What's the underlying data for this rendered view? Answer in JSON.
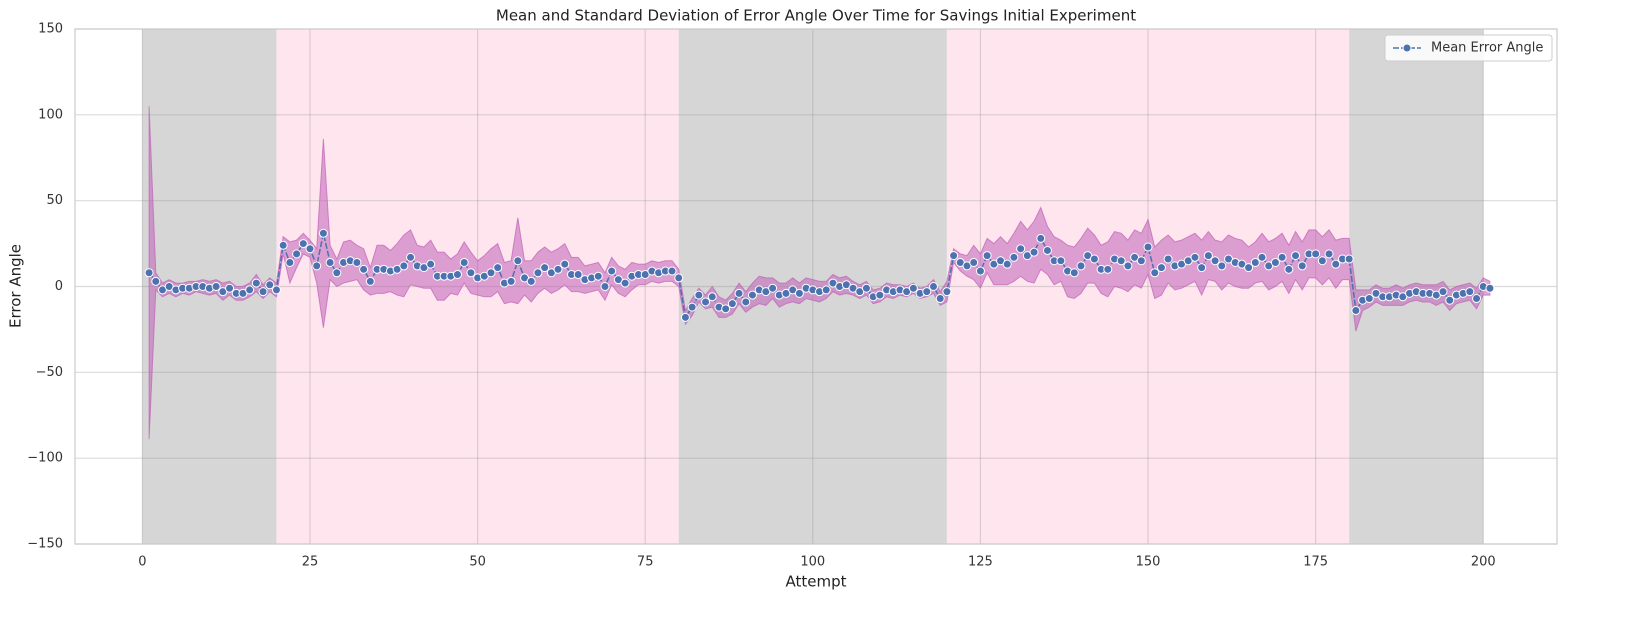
{
  "chart_data": {
    "type": "line",
    "title": "Mean and Standard Deviation of Error Angle Over Time for Savings Initial Experiment",
    "x_label": "Attempt",
    "y_label": "Error Angle",
    "xlim": [
      -10.05,
      211
    ],
    "ylim": [
      -150,
      150
    ],
    "xticks": [
      0,
      25,
      50,
      75,
      100,
      125,
      150,
      175,
      200
    ],
    "yticks": [
      {
        "value": -150,
        "label": "−150"
      },
      {
        "value": -100,
        "label": "−100"
      },
      {
        "value": -50,
        "label": "−50"
      },
      0,
      50,
      100,
      150
    ],
    "grid": true,
    "legend": "upper right",
    "spans": [
      {
        "start": 0,
        "end": 20,
        "color": "#d6d6d6"
      },
      {
        "start": 20,
        "end": 80,
        "color": "#ffe6ee"
      },
      {
        "start": 80,
        "end": 120,
        "color": "#d6d6d6"
      },
      {
        "start": 120,
        "end": 180,
        "color": "#ffe6ee"
      },
      {
        "start": 180,
        "end": 200,
        "color": "#d6d6d6"
      }
    ],
    "x": [
      1,
      2,
      3,
      4,
      5,
      6,
      7,
      8,
      9,
      10,
      11,
      12,
      13,
      14,
      15,
      16,
      17,
      18,
      19,
      20,
      21,
      22,
      23,
      24,
      25,
      26,
      27,
      28,
      29,
      30,
      31,
      32,
      33,
      34,
      35,
      36,
      37,
      38,
      39,
      40,
      41,
      42,
      43,
      44,
      45,
      46,
      47,
      48,
      49,
      50,
      51,
      52,
      53,
      54,
      55,
      56,
      57,
      58,
      59,
      60,
      61,
      62,
      63,
      64,
      65,
      66,
      67,
      68,
      69,
      70,
      71,
      72,
      73,
      74,
      75,
      76,
      77,
      78,
      79,
      80,
      81,
      82,
      83,
      84,
      85,
      86,
      87,
      88,
      89,
      90,
      91,
      92,
      93,
      94,
      95,
      96,
      97,
      98,
      99,
      100,
      101,
      102,
      103,
      104,
      105,
      106,
      107,
      108,
      109,
      110,
      111,
      112,
      113,
      114,
      115,
      116,
      117,
      118,
      119,
      120,
      121,
      122,
      123,
      124,
      125,
      126,
      127,
      128,
      129,
      130,
      131,
      132,
      133,
      134,
      135,
      136,
      137,
      138,
      139,
      140,
      141,
      142,
      143,
      144,
      145,
      146,
      147,
      148,
      149,
      150,
      151,
      152,
      153,
      154,
      155,
      156,
      157,
      158,
      159,
      160,
      161,
      162,
      163,
      164,
      165,
      166,
      167,
      168,
      169,
      170,
      171,
      172,
      173,
      174,
      175,
      176,
      177,
      178,
      179,
      180,
      181,
      182,
      183,
      184,
      185,
      186,
      187,
      188,
      189,
      190,
      191,
      192,
      193,
      194,
      195,
      196,
      197,
      198,
      199,
      200,
      201
    ],
    "series": [
      {
        "name": "Mean Error Angle",
        "color": "#4c72b0",
        "band_color": "#c060b8",
        "values": [
          8,
          3,
          -2,
          0,
          -2,
          -1,
          -1,
          0,
          0,
          -1,
          0,
          -3,
          -1,
          -4,
          -4,
          -2,
          2,
          -3,
          1,
          -2,
          24,
          14,
          19,
          25,
          22,
          12,
          31,
          14,
          8,
          14,
          15,
          14,
          10,
          3,
          10,
          10,
          9,
          10,
          12,
          17,
          12,
          11,
          13,
          6,
          6,
          6,
          7,
          14,
          8,
          5,
          6,
          8,
          11,
          2,
          3,
          15,
          5,
          3,
          8,
          11,
          8,
          10,
          13,
          7,
          7,
          4,
          5,
          6,
          0,
          9,
          4,
          2,
          6,
          7,
          7,
          9,
          8,
          9,
          9,
          5,
          -18,
          -12,
          -5,
          -9,
          -6,
          -12,
          -13,
          -10,
          -4,
          -9,
          -5,
          -2,
          -3,
          -1,
          -5,
          -4,
          -2,
          -4,
          -1,
          -2,
          -3,
          -2,
          2,
          0,
          1,
          -1,
          -3,
          -1,
          -6,
          -5,
          -2,
          -3,
          -2,
          -3,
          -1,
          -4,
          -3,
          0,
          -7,
          -3,
          18,
          14,
          12,
          14,
          9,
          18,
          13,
          15,
          13,
          17,
          22,
          18,
          20,
          28,
          21,
          15,
          15,
          9,
          8,
          12,
          18,
          16,
          10,
          10,
          16,
          15,
          12,
          17,
          15,
          23,
          8,
          11,
          16,
          12,
          13,
          15,
          17,
          11,
          18,
          15,
          12,
          16,
          14,
          13,
          11,
          14,
          17,
          12,
          14,
          17,
          10,
          18,
          12,
          19,
          19,
          15,
          19,
          13,
          16,
          16,
          -14,
          -8,
          -7,
          -4,
          -6,
          -6,
          -5,
          -6,
          -4,
          -3,
          -4,
          -4,
          -5,
          -3,
          -8,
          -5,
          -4,
          -3,
          -7,
          0,
          -1
        ],
        "errors": [
          97,
          5,
          4,
          4,
          4,
          3,
          4,
          3,
          4,
          4,
          4,
          5,
          4,
          4,
          4,
          4,
          5,
          4,
          4,
          4,
          5,
          12,
          8,
          6,
          5,
          10,
          55,
          10,
          8,
          12,
          12,
          10,
          12,
          8,
          14,
          14,
          12,
          15,
          18,
          16,
          12,
          12,
          14,
          14,
          14,
          10,
          12,
          12,
          12,
          10,
          12,
          14,
          14,
          12,
          12,
          25,
          10,
          12,
          12,
          12,
          12,
          12,
          12,
          10,
          10,
          8,
          8,
          8,
          8,
          8,
          8,
          8,
          8,
          6,
          6,
          6,
          6,
          6,
          6,
          5,
          4,
          5,
          4,
          4,
          6,
          6,
          5,
          6,
          6,
          6,
          7,
          8,
          8,
          6,
          7,
          6,
          7,
          6,
          6,
          6,
          6,
          5,
          5,
          5,
          5,
          4,
          4,
          4,
          4,
          4,
          4,
          4,
          3,
          3,
          3,
          3,
          3,
          4,
          4,
          6,
          4,
          5,
          6,
          10,
          10,
          10,
          12,
          14,
          12,
          14,
          16,
          15,
          18,
          18,
          14,
          14,
          12,
          15,
          15,
          16,
          16,
          14,
          14,
          16,
          16,
          16,
          15,
          16,
          16,
          16,
          15,
          16,
          14,
          14,
          14,
          14,
          14,
          16,
          14,
          12,
          14,
          14,
          14,
          14,
          12,
          12,
          14,
          14,
          14,
          14,
          14,
          14,
          14,
          14,
          14,
          14,
          14,
          14,
          12,
          12,
          12,
          6,
          5,
          5,
          5,
          5,
          6,
          5,
          5,
          5,
          5,
          5,
          6,
          6,
          6,
          5,
          5,
          5,
          6,
          5,
          4
        ]
      }
    ]
  }
}
